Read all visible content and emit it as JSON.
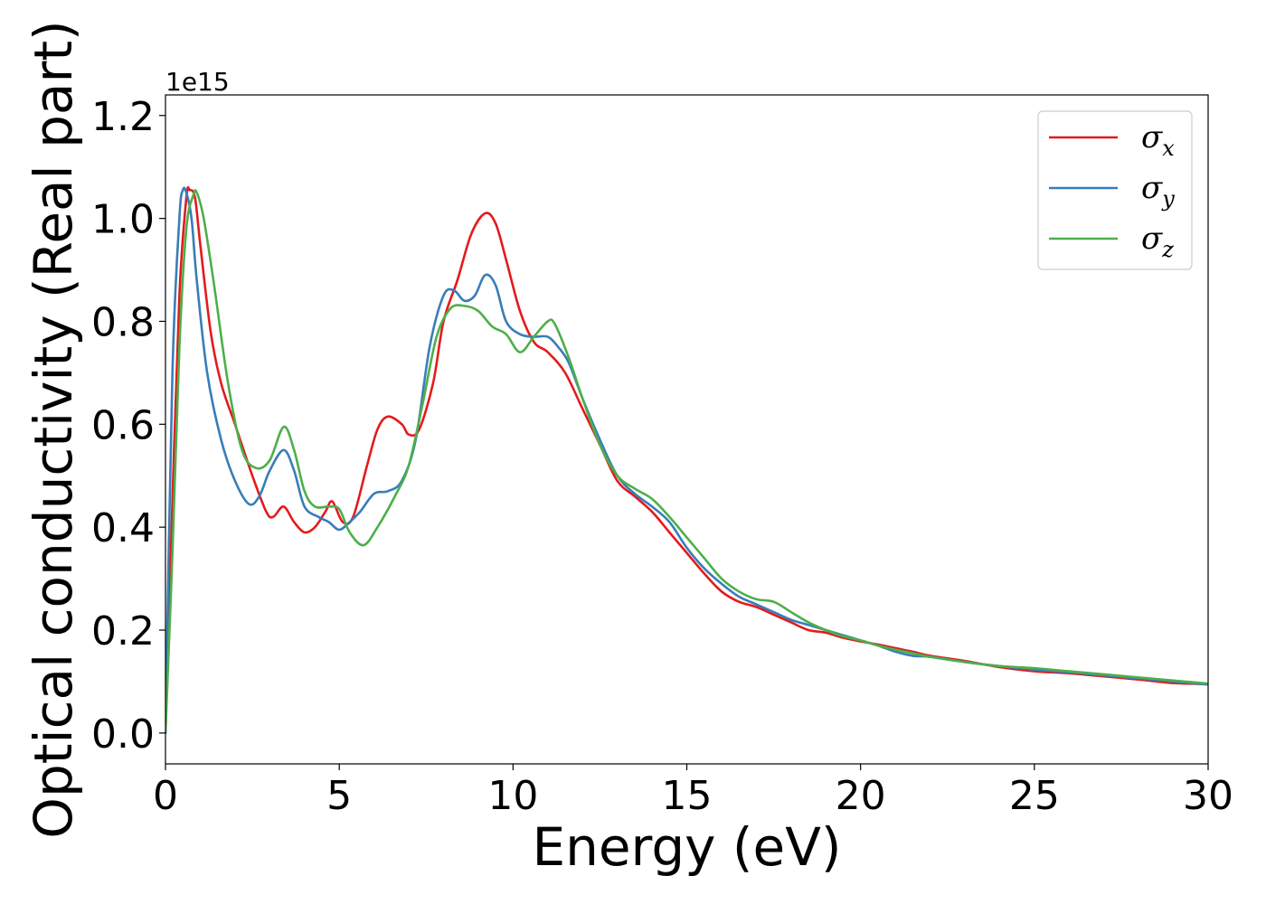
{
  "chart_data": {
    "type": "line",
    "title": "",
    "xlabel": "Energy (eV)",
    "ylabel": "Optical conductivity (Real part)",
    "y_offset_label": "1e15",
    "xlim": [
      0,
      30
    ],
    "ylim": [
      -0.06,
      1.24
    ],
    "x_ticks": [
      0,
      5,
      10,
      15,
      20,
      25,
      30
    ],
    "x_tick_labels": [
      "0",
      "5",
      "10",
      "15",
      "20",
      "25",
      "30"
    ],
    "y_ticks": [
      0.0,
      0.2,
      0.4,
      0.6,
      0.8,
      1.0,
      1.2
    ],
    "y_tick_labels": [
      "0.0",
      "0.2",
      "0.4",
      "0.6",
      "0.8",
      "1.0",
      "1.2"
    ],
    "grid": false,
    "legend_position": "top-right",
    "series": [
      {
        "name": "σx",
        "name_base": "σ",
        "name_sub": "x",
        "color": "#e41a1c",
        "x": [
          0,
          0.2,
          0.4,
          0.6,
          0.7,
          0.85,
          1.0,
          1.3,
          1.6,
          2.0,
          2.5,
          2.9,
          3.1,
          3.4,
          3.7,
          4.0,
          4.3,
          4.6,
          4.8,
          5.1,
          5.4,
          5.8,
          6.1,
          6.4,
          6.8,
          7.0,
          7.3,
          7.7,
          8.0,
          8.4,
          8.8,
          9.2,
          9.5,
          9.8,
          10.2,
          10.6,
          11.0,
          11.5,
          12.0,
          12.5,
          13.0,
          13.5,
          14.0,
          14.5,
          15.0,
          15.5,
          16.0,
          16.5,
          17.0,
          17.5,
          18.0,
          18.5,
          19.0,
          19.5,
          20.0,
          20.5,
          21.0,
          21.5,
          22.0,
          23.0,
          24.0,
          25.0,
          26.0,
          27.0,
          28.0,
          29.0,
          30.0
        ],
        "y": [
          0.0,
          0.45,
          0.85,
          1.04,
          1.055,
          1.04,
          0.95,
          0.78,
          0.68,
          0.6,
          0.5,
          0.43,
          0.42,
          0.44,
          0.41,
          0.39,
          0.4,
          0.43,
          0.45,
          0.41,
          0.42,
          0.52,
          0.59,
          0.615,
          0.6,
          0.58,
          0.59,
          0.68,
          0.8,
          0.88,
          0.97,
          1.01,
          0.99,
          0.92,
          0.82,
          0.76,
          0.74,
          0.7,
          0.63,
          0.56,
          0.49,
          0.46,
          0.43,
          0.39,
          0.35,
          0.31,
          0.275,
          0.255,
          0.245,
          0.23,
          0.215,
          0.2,
          0.195,
          0.185,
          0.178,
          0.172,
          0.165,
          0.158,
          0.15,
          0.14,
          0.128,
          0.12,
          0.116,
          0.11,
          0.104,
          0.097,
          0.095
        ]
      },
      {
        "name": "σy",
        "name_base": "σ",
        "name_sub": "y",
        "color": "#377eb8",
        "x": [
          0,
          0.2,
          0.4,
          0.5,
          0.6,
          0.75,
          0.9,
          1.2,
          1.6,
          2.0,
          2.4,
          2.7,
          3.0,
          3.4,
          3.7,
          4.0,
          4.4,
          4.7,
          5.0,
          5.3,
          5.6,
          6.0,
          6.4,
          6.8,
          7.2,
          7.6,
          8.0,
          8.3,
          8.6,
          8.9,
          9.2,
          9.5,
          9.8,
          10.2,
          10.6,
          11.0,
          11.3,
          11.6,
          12.0,
          12.5,
          13.0,
          13.5,
          14.0,
          14.5,
          15.0,
          15.5,
          16.0,
          16.5,
          17.0,
          17.5,
          18.0,
          18.5,
          19.0,
          19.5,
          20.0,
          20.5,
          21.0,
          21.5,
          22.0,
          23.0,
          24.0,
          25.0,
          26.0,
          27.0,
          28.0,
          29.0,
          30.0
        ],
        "y": [
          0.0,
          0.7,
          1.0,
          1.055,
          1.05,
          1.0,
          0.88,
          0.7,
          0.57,
          0.49,
          0.445,
          0.46,
          0.51,
          0.55,
          0.51,
          0.44,
          0.42,
          0.41,
          0.395,
          0.41,
          0.43,
          0.465,
          0.47,
          0.49,
          0.57,
          0.75,
          0.85,
          0.86,
          0.84,
          0.85,
          0.89,
          0.87,
          0.8,
          0.775,
          0.77,
          0.77,
          0.75,
          0.72,
          0.65,
          0.57,
          0.5,
          0.465,
          0.44,
          0.41,
          0.36,
          0.32,
          0.29,
          0.265,
          0.25,
          0.235,
          0.22,
          0.21,
          0.2,
          0.19,
          0.18,
          0.17,
          0.158,
          0.15,
          0.148,
          0.138,
          0.13,
          0.123,
          0.118,
          0.112,
          0.106,
          0.1,
          0.094
        ]
      },
      {
        "name": "σz",
        "name_base": "σ",
        "name_sub": "z",
        "color": "#4daf4a",
        "x": [
          0,
          0.2,
          0.4,
          0.6,
          0.8,
          0.9,
          1.1,
          1.4,
          1.8,
          2.2,
          2.6,
          3.0,
          3.4,
          3.7,
          4.0,
          4.3,
          4.7,
          5.0,
          5.3,
          5.7,
          6.1,
          6.6,
          7.0,
          7.4,
          7.8,
          8.2,
          8.6,
          9.0,
          9.4,
          9.8,
          10.2,
          10.6,
          11.0,
          11.2,
          11.6,
          12.0,
          12.5,
          13.0,
          13.5,
          14.0,
          14.5,
          15.0,
          15.5,
          16.0,
          16.5,
          17.0,
          17.5,
          18.0,
          18.5,
          19.0,
          19.5,
          20.0,
          20.5,
          21.0,
          21.5,
          22.0,
          23.0,
          24.0,
          25.0,
          26.0,
          27.0,
          28.0,
          29.0,
          30.0
        ],
        "y": [
          0.0,
          0.35,
          0.75,
          0.98,
          1.045,
          1.05,
          1.0,
          0.87,
          0.68,
          0.55,
          0.515,
          0.53,
          0.595,
          0.55,
          0.47,
          0.44,
          0.44,
          0.435,
          0.39,
          0.365,
          0.4,
          0.46,
          0.52,
          0.64,
          0.77,
          0.825,
          0.83,
          0.82,
          0.79,
          0.775,
          0.74,
          0.77,
          0.8,
          0.795,
          0.73,
          0.65,
          0.56,
          0.5,
          0.475,
          0.455,
          0.42,
          0.38,
          0.34,
          0.3,
          0.275,
          0.26,
          0.255,
          0.235,
          0.215,
          0.2,
          0.188,
          0.18,
          0.17,
          0.162,
          0.155,
          0.148,
          0.138,
          0.13,
          0.126,
          0.12,
          0.114,
          0.108,
          0.102,
          0.096
        ]
      }
    ]
  }
}
